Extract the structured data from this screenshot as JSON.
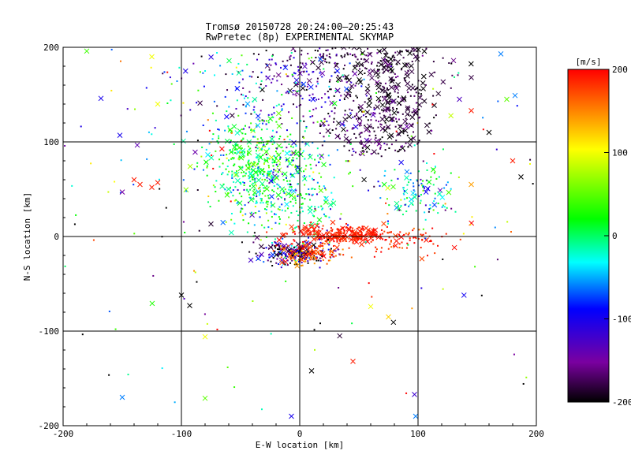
{
  "chart_data": {
    "type": "scatter",
    "title": "Tromsø 20150728 20:24:00–20:25:43",
    "subtitle": "RwPretec (8p) EXPERIMENTAL SKYMAP",
    "xlabel": "E-W location [km]",
    "ylabel": "N-S location [km]",
    "xlim": [
      -200,
      200
    ],
    "ylim": [
      -200,
      200
    ],
    "xticks": [
      "-200",
      "-100",
      "0",
      "100",
      "200"
    ],
    "yticks": [
      "-200",
      "-100",
      "0",
      "100",
      "200"
    ],
    "grid": true,
    "colorbar": {
      "label": "[m/s]",
      "range": [
        -200,
        200
      ],
      "ticks": [
        "200",
        "100",
        "0",
        "-100",
        "-200"
      ],
      "colormap": "rainbow (black → purple → blue → cyan → green → yellow → red)"
    },
    "markers": [
      "dot",
      "x"
    ],
    "clusters": [
      {
        "x": 75,
        "y": 155,
        "sx": 20,
        "sy": 28,
        "n": 260,
        "v": -190,
        "vs": 15,
        "xfrac": 0.45
      },
      {
        "x": 45,
        "y": 185,
        "sx": 40,
        "sy": 15,
        "n": 150,
        "v": -185,
        "vs": 15,
        "xfrac": 0.3
      },
      {
        "x": 60,
        "y": 110,
        "sx": 22,
        "sy": 14,
        "n": 130,
        "v": -175,
        "vs": 20,
        "xfrac": 0.2
      },
      {
        "x": 10,
        "y": 160,
        "sx": 30,
        "sy": 25,
        "n": 160,
        "v": -140,
        "vs": 35,
        "xfrac": 0.15
      },
      {
        "x": -40,
        "y": 150,
        "sx": 40,
        "sy": 25,
        "n": 140,
        "v": -80,
        "vs": 70,
        "xfrac": 0.1
      },
      {
        "x": -40,
        "y": 80,
        "sx": 22,
        "sy": 20,
        "n": 320,
        "v": 15,
        "vs": 30,
        "xfrac": 0.25
      },
      {
        "x": -10,
        "y": 60,
        "sx": 28,
        "sy": 25,
        "n": 200,
        "v": -30,
        "vs": 55,
        "xfrac": 0.1
      },
      {
        "x": -20,
        "y": 30,
        "sx": 25,
        "sy": 15,
        "n": 120,
        "v": 10,
        "vs": 45,
        "xfrac": 0.1
      },
      {
        "x": 40,
        "y": 2,
        "sx": 25,
        "sy": 5,
        "n": 260,
        "v": 190,
        "vs": 10,
        "xfrac": 0.3
      },
      {
        "x": 90,
        "y": -5,
        "sx": 18,
        "sy": 7,
        "n": 60,
        "v": 185,
        "vs": 12,
        "xfrac": 0.15
      },
      {
        "x": -5,
        "y": -18,
        "sx": 15,
        "sy": 6,
        "n": 220,
        "v": -160,
        "vs": 60,
        "xfrac": 0.15
      },
      {
        "x": 10,
        "y": -18,
        "sx": 14,
        "sy": 6,
        "n": 120,
        "v": 170,
        "vs": 25,
        "xfrac": 0.2
      },
      {
        "x": 100,
        "y": 50,
        "sx": 15,
        "sy": 15,
        "n": 100,
        "v": -30,
        "vs": 50,
        "xfrac": 0.2
      },
      {
        "x": 0,
        "y": 50,
        "sx": 140,
        "sy": 110,
        "n": 260,
        "v": 0,
        "vs": 150,
        "xfrac": 0.08
      }
    ],
    "points": [
      {
        "x": -140,
        "y": 60,
        "v": 190,
        "m": "x"
      },
      {
        "x": -135,
        "y": 55,
        "v": 190,
        "m": "x"
      },
      {
        "x": -125,
        "y": 52,
        "v": 190,
        "m": "x"
      },
      {
        "x": -120,
        "y": 57,
        "v": 190,
        "m": "x"
      },
      {
        "x": -150,
        "y": 47,
        "v": -150,
        "m": "x"
      },
      {
        "x": -168,
        "y": 146,
        "v": -100,
        "m": "x"
      },
      {
        "x": -120,
        "y": 140,
        "v": 100,
        "m": "x"
      },
      {
        "x": -125,
        "y": 190,
        "v": 100,
        "m": "x"
      },
      {
        "x": -100,
        "y": -62,
        "v": -200,
        "m": "x"
      },
      {
        "x": -93,
        "y": -73,
        "v": -200,
        "m": "x"
      },
      {
        "x": -80,
        "y": -106,
        "v": 100,
        "m": "x"
      },
      {
        "x": -80,
        "y": -171,
        "v": 50,
        "m": "x"
      },
      {
        "x": -150,
        "y": -170,
        "v": -60,
        "m": "x"
      },
      {
        "x": 10,
        "y": -142,
        "v": -200,
        "m": "x"
      },
      {
        "x": 45,
        "y": -132,
        "v": 190,
        "m": "x"
      },
      {
        "x": 60,
        "y": -74,
        "v": 100,
        "m": "x"
      },
      {
        "x": 75,
        "y": -85,
        "v": 120,
        "m": "x"
      },
      {
        "x": 97,
        "y": -167,
        "v": -120,
        "m": "x"
      },
      {
        "x": 98,
        "y": -190,
        "v": -60,
        "m": "x"
      },
      {
        "x": 135,
        "y": 145,
        "v": -130,
        "m": "x"
      },
      {
        "x": 145,
        "y": 133,
        "v": 190,
        "m": "x"
      },
      {
        "x": 145,
        "y": 55,
        "v": 140,
        "m": "x"
      },
      {
        "x": 145,
        "y": 168,
        "v": -180,
        "m": "x"
      },
      {
        "x": 130,
        "y": 186,
        "v": -160,
        "m": "x"
      },
      {
        "x": 175,
        "y": 145,
        "v": 50,
        "m": "x"
      },
      {
        "x": 170,
        "y": 193,
        "v": -60,
        "m": "x"
      },
      {
        "x": 180,
        "y": 80,
        "v": 190,
        "m": "x"
      },
      {
        "x": 187,
        "y": 63,
        "v": -200,
        "m": "x"
      },
      {
        "x": 182,
        "y": 149,
        "v": -60,
        "m": "x"
      },
      {
        "x": -152,
        "y": 107,
        "v": -100,
        "m": "x"
      },
      {
        "x": -180,
        "y": 196,
        "v": 40,
        "m": "x"
      },
      {
        "x": -7,
        "y": -190,
        "v": -100,
        "m": "x"
      },
      {
        "x": 160,
        "y": 110,
        "v": -200,
        "m": "x"
      }
    ]
  }
}
